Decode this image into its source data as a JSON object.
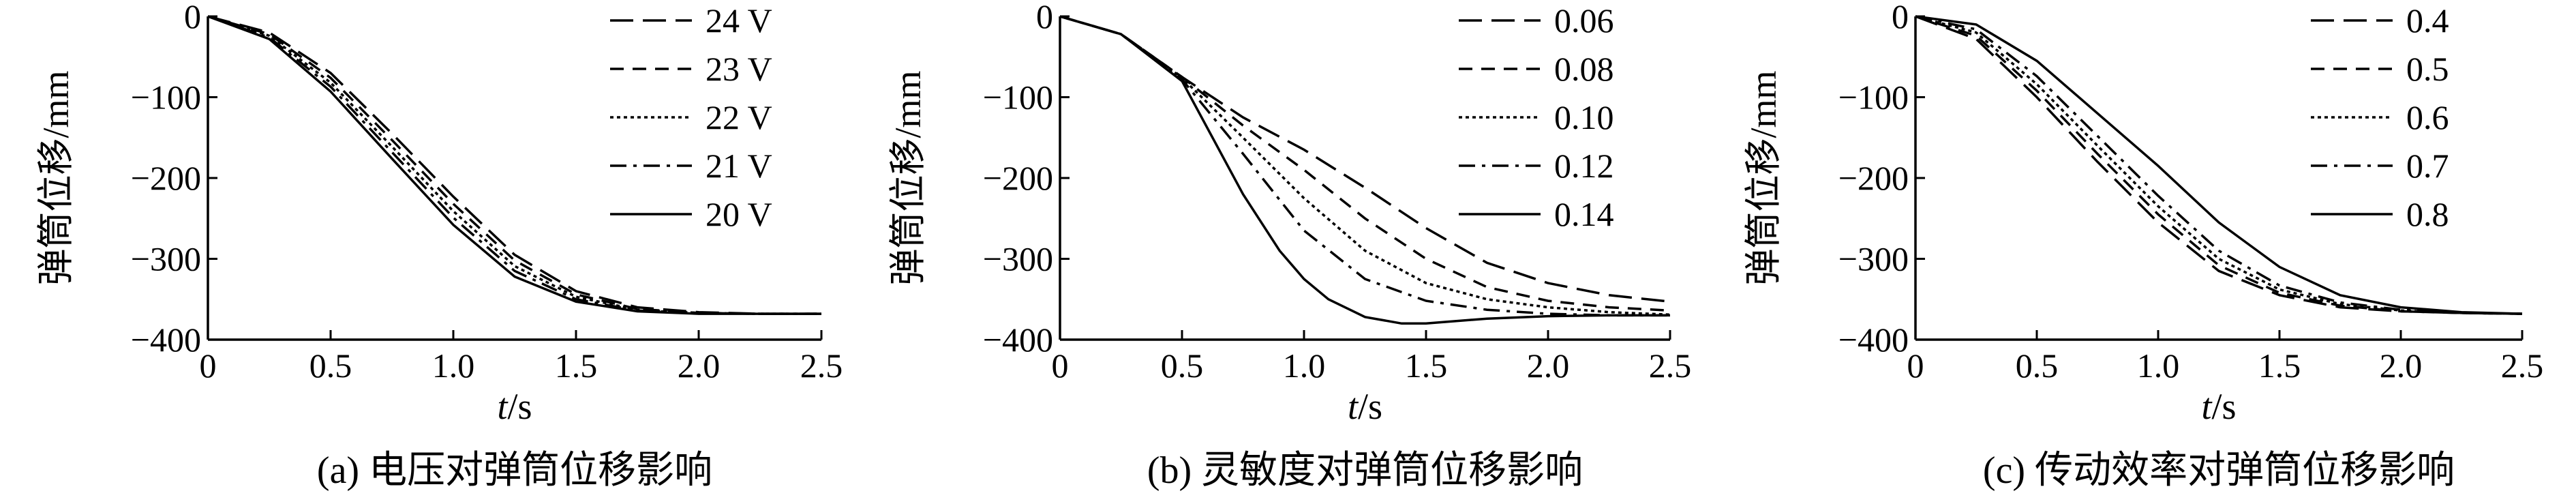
{
  "chart_data": [
    {
      "type": "line",
      "xlabel_italic": "t",
      "xlabel_unit": "/s",
      "ylabel": "弹筒位移/mm",
      "xlim": [
        0,
        2.5
      ],
      "ylim": [
        -400,
        0
      ],
      "xticks": [
        "0",
        "0.5",
        "1.0",
        "1.5",
        "2.0",
        "2.5"
      ],
      "yticks": [
        "0",
        "−100",
        "−200",
        "−300",
        "−400"
      ],
      "caption": "(a) 电压对弹筒位移影响",
      "legend_position": "top-right",
      "series": [
        {
          "name": "24 V",
          "dash": "long-dash",
          "x": [
            0,
            0.25,
            0.5,
            0.75,
            1.0,
            1.25,
            1.5,
            1.75,
            2.0,
            2.25,
            2.5
          ],
          "y": [
            0,
            -20,
            -70,
            -145,
            -223,
            -295,
            -340,
            -360,
            -366,
            -368,
            -368
          ]
        },
        {
          "name": "23 V",
          "dash": "dash",
          "x": [
            0,
            0.25,
            0.5,
            0.75,
            1.0,
            1.25,
            1.5,
            1.75,
            2.0,
            2.25,
            2.5
          ],
          "y": [
            0,
            -22,
            -76,
            -153,
            -232,
            -302,
            -344,
            -362,
            -367,
            -368,
            -368
          ]
        },
        {
          "name": "22 V",
          "dash": "dot",
          "x": [
            0,
            0.25,
            0.5,
            0.75,
            1.0,
            1.25,
            1.5,
            1.75,
            2.0,
            2.25,
            2.5
          ],
          "y": [
            0,
            -24,
            -82,
            -161,
            -241,
            -309,
            -347,
            -363,
            -367,
            -368,
            -368
          ]
        },
        {
          "name": "21 V",
          "dash": "dash-dot",
          "x": [
            0,
            0.25,
            0.5,
            0.75,
            1.0,
            1.25,
            1.5,
            1.75,
            2.0,
            2.25,
            2.5
          ],
          "y": [
            0,
            -26,
            -87,
            -168,
            -249,
            -315,
            -350,
            -364,
            -367,
            -368,
            -368
          ]
        },
        {
          "name": "20 V",
          "dash": "solid",
          "x": [
            0,
            0.25,
            0.5,
            0.75,
            1.0,
            1.25,
            1.5,
            1.75,
            2.0,
            2.25,
            2.5
          ],
          "y": [
            0,
            -28,
            -93,
            -176,
            -258,
            -322,
            -353,
            -365,
            -368,
            -368,
            -368
          ]
        }
      ]
    },
    {
      "type": "line",
      "xlabel_italic": "t",
      "xlabel_unit": "/s",
      "ylabel": "弹筒位移/mm",
      "xlim": [
        0,
        2.5
      ],
      "ylim": [
        -400,
        0
      ],
      "xticks": [
        "0",
        "0.5",
        "1.0",
        "1.5",
        "2.0",
        "2.5"
      ],
      "yticks": [
        "0",
        "−100",
        "−200",
        "−300",
        "−400"
      ],
      "caption": "(b) 灵敏度对弹筒位移影响",
      "legend_position": "top-right",
      "series": [
        {
          "name": "0.06",
          "dash": "long-dash",
          "x": [
            0,
            0.25,
            0.5,
            0.75,
            1.0,
            1.25,
            1.5,
            1.75,
            2.0,
            2.25,
            2.5
          ],
          "y": [
            0,
            -22,
            -75,
            -125,
            -165,
            -212,
            -262,
            -305,
            -330,
            -345,
            -353
          ]
        },
        {
          "name": "0.08",
          "dash": "dash",
          "x": [
            0,
            0.25,
            0.5,
            0.75,
            1.0,
            1.25,
            1.5,
            1.75,
            2.0,
            2.25,
            2.5
          ],
          "y": [
            0,
            -22,
            -75,
            -135,
            -190,
            -250,
            -300,
            -335,
            -352,
            -360,
            -364
          ]
        },
        {
          "name": "0.10",
          "dash": "dot",
          "x": [
            0,
            0.25,
            0.5,
            0.75,
            1.0,
            1.25,
            1.5,
            1.75,
            2.0,
            2.25,
            2.5
          ],
          "y": [
            0,
            -22,
            -76,
            -150,
            -225,
            -290,
            -330,
            -350,
            -360,
            -366,
            -369
          ]
        },
        {
          "name": "0.12",
          "dash": "dash-dot",
          "x": [
            0,
            0.25,
            0.5,
            0.75,
            1.0,
            1.25,
            1.5,
            1.75,
            2.0,
            2.25,
            2.5
          ],
          "y": [
            0,
            -22,
            -78,
            -170,
            -265,
            -325,
            -352,
            -363,
            -368,
            -370,
            -370
          ]
        },
        {
          "name": "0.14",
          "dash": "solid",
          "x": [
            0,
            0.25,
            0.5,
            0.75,
            0.9,
            1.0,
            1.1,
            1.25,
            1.4,
            1.5,
            1.75,
            2.0,
            2.25,
            2.5
          ],
          "y": [
            0,
            -22,
            -80,
            -220,
            -290,
            -325,
            -350,
            -372,
            -380,
            -380,
            -374,
            -371,
            -370,
            -370
          ]
        }
      ]
    },
    {
      "type": "line",
      "xlabel_italic": "t",
      "xlabel_unit": "/s",
      "ylabel": "弹筒位移/mm",
      "xlim": [
        0,
        2.5
      ],
      "ylim": [
        -400,
        0
      ],
      "xticks": [
        "0",
        "0.5",
        "1.0",
        "1.5",
        "2.0",
        "2.5"
      ],
      "yticks": [
        "0",
        "−100",
        "−200",
        "−300",
        "−400"
      ],
      "caption": "(c) 传动效率对弹筒位移影响",
      "legend_position": "top-right",
      "series": [
        {
          "name": "0.4",
          "dash": "long-dash",
          "x": [
            0,
            0.25,
            0.5,
            0.75,
            1.0,
            1.25,
            1.5,
            1.75,
            2.0,
            2.25,
            2.5
          ],
          "y": [
            0,
            -28,
            -100,
            -180,
            -255,
            -315,
            -345,
            -360,
            -365,
            -367,
            -368
          ]
        },
        {
          "name": "0.5",
          "dash": "dash",
          "x": [
            0,
            0.25,
            0.5,
            0.75,
            1.0,
            1.25,
            1.5,
            1.75,
            2.0,
            2.25,
            2.5
          ],
          "y": [
            0,
            -24,
            -92,
            -170,
            -245,
            -308,
            -342,
            -358,
            -365,
            -367,
            -368
          ]
        },
        {
          "name": "0.6",
          "dash": "dot",
          "x": [
            0,
            0.25,
            0.5,
            0.75,
            1.0,
            1.25,
            1.5,
            1.75,
            2.0,
            2.25,
            2.5
          ],
          "y": [
            0,
            -20,
            -84,
            -160,
            -235,
            -300,
            -338,
            -356,
            -364,
            -367,
            -368
          ]
        },
        {
          "name": "0.7",
          "dash": "dash-dot",
          "x": [
            0,
            0.25,
            0.5,
            0.75,
            1.0,
            1.25,
            1.5,
            1.75,
            2.0,
            2.25,
            2.5
          ],
          "y": [
            0,
            -16,
            -74,
            -148,
            -222,
            -290,
            -333,
            -354,
            -363,
            -367,
            -368
          ]
        },
        {
          "name": "0.8",
          "dash": "solid",
          "x": [
            0,
            0.25,
            0.5,
            0.75,
            1.0,
            1.25,
            1.5,
            1.75,
            2.0,
            2.25,
            2.5
          ],
          "y": [
            0,
            -10,
            -55,
            -120,
            -185,
            -255,
            -310,
            -345,
            -360,
            -366,
            -368
          ]
        }
      ]
    }
  ]
}
